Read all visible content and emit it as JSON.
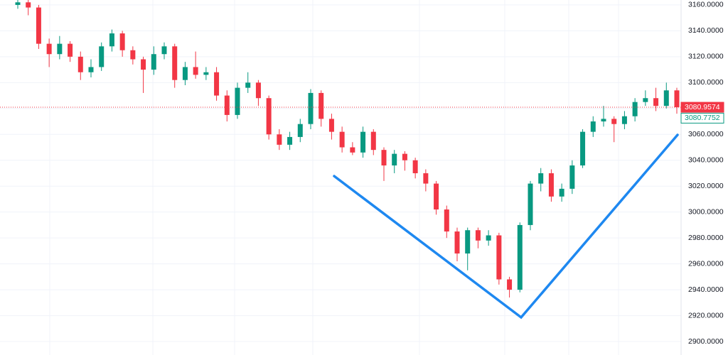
{
  "chart_data": {
    "type": "candlestick",
    "up_color": "#089981",
    "down_color": "#f23645",
    "open": [
      3160,
      3162,
      3158,
      3130,
      3122,
      3130,
      3120,
      3108,
      3112,
      3128,
      3138,
      3125,
      3118,
      3110,
      3122,
      3128,
      3102,
      3112,
      3106,
      3108,
      3090,
      3075,
      3096,
      3100,
      3088,
      3060,
      3052,
      3058,
      3068,
      3092,
      3072,
      3062,
      3050,
      3046,
      3062,
      3048,
      3036,
      3045,
      3040,
      3030,
      3022,
      3002,
      2985,
      2968,
      2986,
      2978,
      2982,
      2948,
      2940,
      2990,
      3022,
      3030,
      3012,
      3018,
      3036,
      3062,
      3070,
      3072,
      3068,
      3074,
      3085,
      3088,
      3082,
      3094
    ],
    "high": [
      3165,
      3164,
      3160,
      3134,
      3136,
      3132,
      3124,
      3118,
      3131,
      3141,
      3140,
      3128,
      3120,
      3128,
      3131,
      3130,
      3116,
      3124,
      3112,
      3112,
      3094,
      3100,
      3108,
      3102,
      3090,
      3064,
      3062,
      3072,
      3095,
      3094,
      3076,
      3066,
      3054,
      3066,
      3064,
      3050,
      3048,
      3047,
      3042,
      3033,
      3024,
      3005,
      2988,
      2988,
      2988,
      2986,
      2984,
      2950,
      2992,
      3024,
      3034,
      3033,
      3022,
      3040,
      3064,
      3074,
      3082,
      3074,
      3078,
      3088,
      3094,
      3096,
      3100,
      3096
    ],
    "low": [
      3157,
      3152,
      3126,
      3112,
      3118,
      3116,
      3102,
      3104,
      3109,
      3124,
      3120,
      3114,
      3092,
      3106,
      3118,
      3096,
      3098,
      3103,
      3102,
      3086,
      3070,
      3072,
      3092,
      3082,
      3056,
      3048,
      3048,
      3054,
      3064,
      3066,
      3056,
      3046,
      3044,
      3042,
      3044,
      3024,
      3030,
      3032,
      3026,
      3016,
      2998,
      2980,
      2962,
      2955,
      2972,
      2974,
      2944,
      2934,
      2938,
      2986,
      3016,
      3008,
      3008,
      3014,
      3034,
      3058,
      3066,
      3054,
      3064,
      3070,
      3082,
      3078,
      3080,
      3076
    ],
    "close": [
      3162,
      3158,
      3130,
      3122,
      3130,
      3120,
      3108,
      3112,
      3128,
      3138,
      3125,
      3118,
      3110,
      3122,
      3128,
      3102,
      3112,
      3106,
      3108,
      3090,
      3075,
      3096,
      3100,
      3088,
      3060,
      3052,
      3058,
      3068,
      3092,
      3072,
      3062,
      3050,
      3046,
      3062,
      3048,
      3036,
      3045,
      3040,
      3030,
      3022,
      3002,
      2985,
      2968,
      2986,
      2978,
      2982,
      2948,
      2940,
      2990,
      3022,
      3030,
      3012,
      3018,
      3036,
      3062,
      3070,
      3072,
      3068,
      3074,
      3085,
      3088,
      3082,
      3094,
      3080.9574
    ],
    "ylim": [
      2889.6,
      3163.8
    ],
    "yticks": [
      {
        "value": 2900,
        "label": "2900.0000"
      },
      {
        "value": 2920,
        "label": "2920.0000"
      },
      {
        "value": 2940,
        "label": "2940.0000"
      },
      {
        "value": 2960,
        "label": "2960.0000"
      },
      {
        "value": 2980,
        "label": "2980.0000"
      },
      {
        "value": 3000,
        "label": "3000.0000"
      },
      {
        "value": 3020,
        "label": "3020.0000"
      },
      {
        "value": 3040,
        "label": "3040.0000"
      },
      {
        "value": 3060,
        "label": "3060.0000"
      },
      {
        "value": 3080,
        "label": "3080.0000"
      },
      {
        "value": 3100,
        "label": "3100.0000"
      },
      {
        "value": 3120,
        "label": "3120.0000"
      },
      {
        "value": 3140,
        "label": "3140.0000"
      },
      {
        "value": 3160,
        "label": "3160.0000"
      }
    ],
    "grid": true,
    "price_labels": [
      {
        "value": 3080.9574,
        "color": "#f23645"
      },
      {
        "value": 3080.7752,
        "color": "#089981"
      }
    ]
  }
}
